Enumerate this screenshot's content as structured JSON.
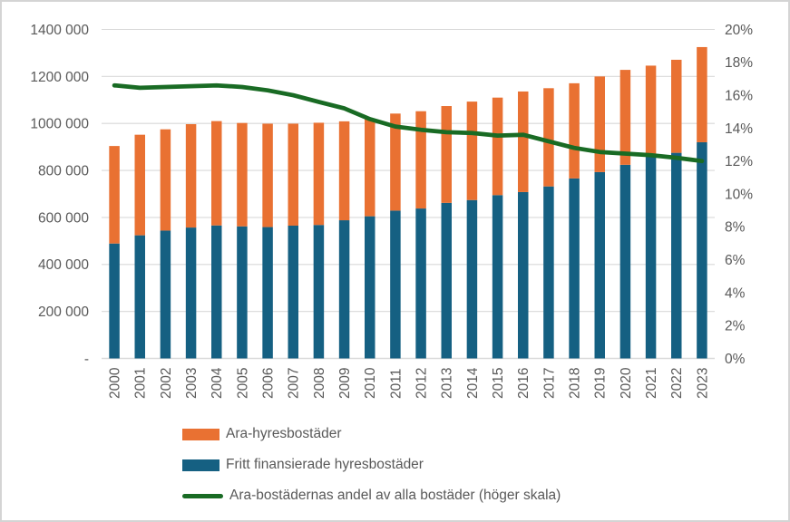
{
  "chart_data": {
    "type": "combo",
    "title": "",
    "categories": [
      "2000",
      "2001",
      "2002",
      "2003",
      "2004",
      "2005",
      "2006",
      "2007",
      "2008",
      "2009",
      "2010",
      "2011",
      "2012",
      "2013",
      "2014",
      "2015",
      "2016",
      "2017",
      "2018",
      "2019",
      "2020",
      "2021",
      "2022",
      "2023"
    ],
    "series": [
      {
        "name": "Ara-hyresbostäder",
        "type": "bar",
        "stack": "rental",
        "stack_position": "top",
        "axis": "left",
        "color": "#E97132",
        "values": [
          415000,
          428000,
          431000,
          440000,
          444000,
          440000,
          440000,
          434000,
          435000,
          421000,
          415000,
          413000,
          414000,
          412000,
          419000,
          415000,
          428000,
          418000,
          405000,
          407000,
          404000,
          380000,
          396000,
          405000
        ]
      },
      {
        "name": "Fritt finansierade hyresbostäder",
        "type": "bar",
        "stack": "rental",
        "stack_position": "bottom",
        "axis": "left",
        "color": "#156082",
        "values": [
          489000,
          524000,
          544000,
          557000,
          566000,
          562000,
          559000,
          565000,
          568000,
          588000,
          605000,
          629000,
          638000,
          662000,
          674000,
          695000,
          708000,
          732000,
          766000,
          793000,
          824000,
          866000,
          875000,
          920000
        ]
      },
      {
        "name": "Ara-bostädernas andel av alla bostäder (höger skala)",
        "type": "line",
        "axis": "right",
        "color": "#196B24",
        "values": [
          16.6,
          16.45,
          16.5,
          16.55,
          16.6,
          16.5,
          16.3,
          16.0,
          15.6,
          15.2,
          14.55,
          14.1,
          13.9,
          13.75,
          13.7,
          13.55,
          13.6,
          13.2,
          12.8,
          12.55,
          12.45,
          12.35,
          12.2,
          12.0
        ]
      }
    ],
    "left_axis": {
      "min": 0,
      "max": 1400000,
      "tick_step": 200000,
      "tick_labels": [
        "-",
        "200 000",
        "400 000",
        "600 000",
        "800 000",
        "1000 000",
        "1200 000",
        "1400 000"
      ]
    },
    "right_axis": {
      "min": 0,
      "max": 20,
      "tick_step": 2,
      "tick_labels": [
        "0%",
        "2%",
        "4%",
        "6%",
        "8%",
        "10%",
        "12%",
        "14%",
        "16%",
        "18%",
        "20%"
      ]
    },
    "grid": true,
    "legend_position": "bottom-left"
  },
  "legend": {
    "items": [
      {
        "label": "Ara-hyresbostäder",
        "swatch": "bar",
        "color": "#E97132"
      },
      {
        "label": "Fritt finansierade hyresbostäder",
        "swatch": "bar",
        "color": "#156082"
      },
      {
        "label": "Ara-bostädernas andel av alla bostäder (höger skala)",
        "swatch": "line",
        "color": "#196B24"
      }
    ]
  },
  "colors": {
    "grid": "#D9D9D9",
    "axis_line": "#D9D9D9",
    "tick_text": "#595959",
    "background": "#FFFFFF"
  }
}
